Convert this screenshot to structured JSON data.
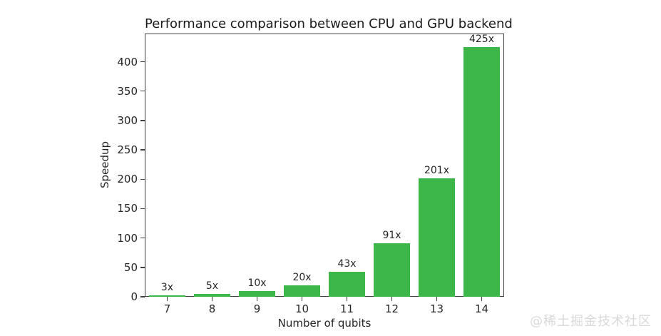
{
  "chart_data": {
    "type": "bar",
    "title": "Performance comparison between CPU and GPU backend",
    "xlabel": "Number of qubits",
    "ylabel": "Speedup",
    "categories": [
      "7",
      "8",
      "9",
      "10",
      "11",
      "12",
      "13",
      "14"
    ],
    "values": [
      3,
      5,
      10,
      20,
      43,
      91,
      201,
      425
    ],
    "bar_labels": [
      "3x",
      "5x",
      "10x",
      "20x",
      "43x",
      "91x",
      "201x",
      "425x"
    ],
    "yticks": [
      0,
      50,
      100,
      150,
      200,
      250,
      300,
      350,
      400
    ],
    "ylim": [
      0,
      448
    ],
    "bar_color": "#3eb74a",
    "axis_color": "#3f3f3f",
    "text_color": "#262626",
    "grid": false,
    "legend_position": "none"
  },
  "watermark": {
    "text": "@稀土掘金技术社区",
    "color": "#d9d9d9"
  }
}
